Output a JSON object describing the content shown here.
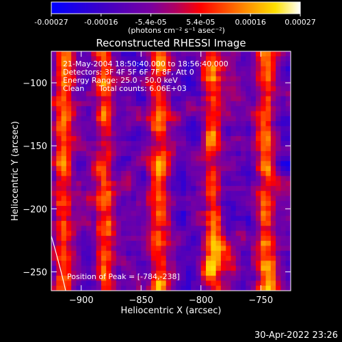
{
  "chart_data": {
    "type": "heatmap",
    "title": "Reconstructed RHESSI Image",
    "xlabel": "Heliocentric X (arcsec)",
    "ylabel": "Heliocentric Y (arcsec)",
    "xlim": [
      -925,
      -725
    ],
    "ylim": [
      -265,
      -75
    ],
    "x_ticks": [
      -900,
      -850,
      -800,
      -750
    ],
    "y_ticks": [
      -100,
      -150,
      -200,
      -250
    ],
    "colorbar": {
      "label": "(photons cm⁻² s⁻¹ asec⁻²)",
      "range": [
        -0.00027,
        0.00027
      ],
      "tick_labels": [
        "-0.00027",
        "-0.00016",
        "-5.4e-05",
        "5.4e-05",
        "0.00016",
        "0.00027"
      ]
    },
    "annotations": {
      "time_range": "21-May-2004 18:50:40.000 to 18:56:40.000",
      "detectors": "Detectors: 3F 4F 5F 6F 7F 8F, Att 0",
      "energy_range": "Energy Range: 25.0 - 50.0 keV",
      "clean": "Clean",
      "total_counts": "Total counts: 6.06E+03",
      "peak": "Position of Peak = [-784,-238]"
    },
    "peak_position": [
      -784,
      -238
    ],
    "pixel_grid": [
      48,
      48
    ],
    "bright_bands_x": [
      -915,
      -880,
      -835,
      -790,
      -745
    ],
    "limb_arc": true
  },
  "footer": {
    "timestamp": "30-Apr-2022 23:26"
  }
}
